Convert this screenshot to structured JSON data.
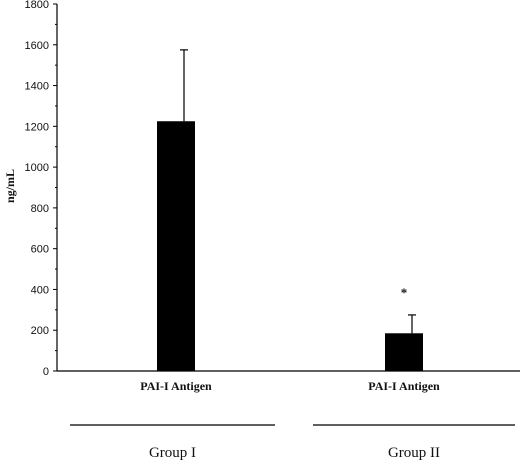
{
  "chart_data": {
    "type": "bar",
    "ylabel": "ng/mL",
    "ylim": [
      0,
      1800
    ],
    "yticks": [
      0,
      200,
      400,
      600,
      800,
      1000,
      1200,
      1400,
      1600,
      1800
    ],
    "categories": [
      "PAI-I Antigen",
      "PAI-I Antigen"
    ],
    "values": [
      1225,
      185
    ],
    "errors": [
      350,
      90
    ],
    "annotations": [
      "",
      "*"
    ],
    "groups": [
      "Group I",
      "Group II"
    ],
    "bar_color": "#000000"
  }
}
